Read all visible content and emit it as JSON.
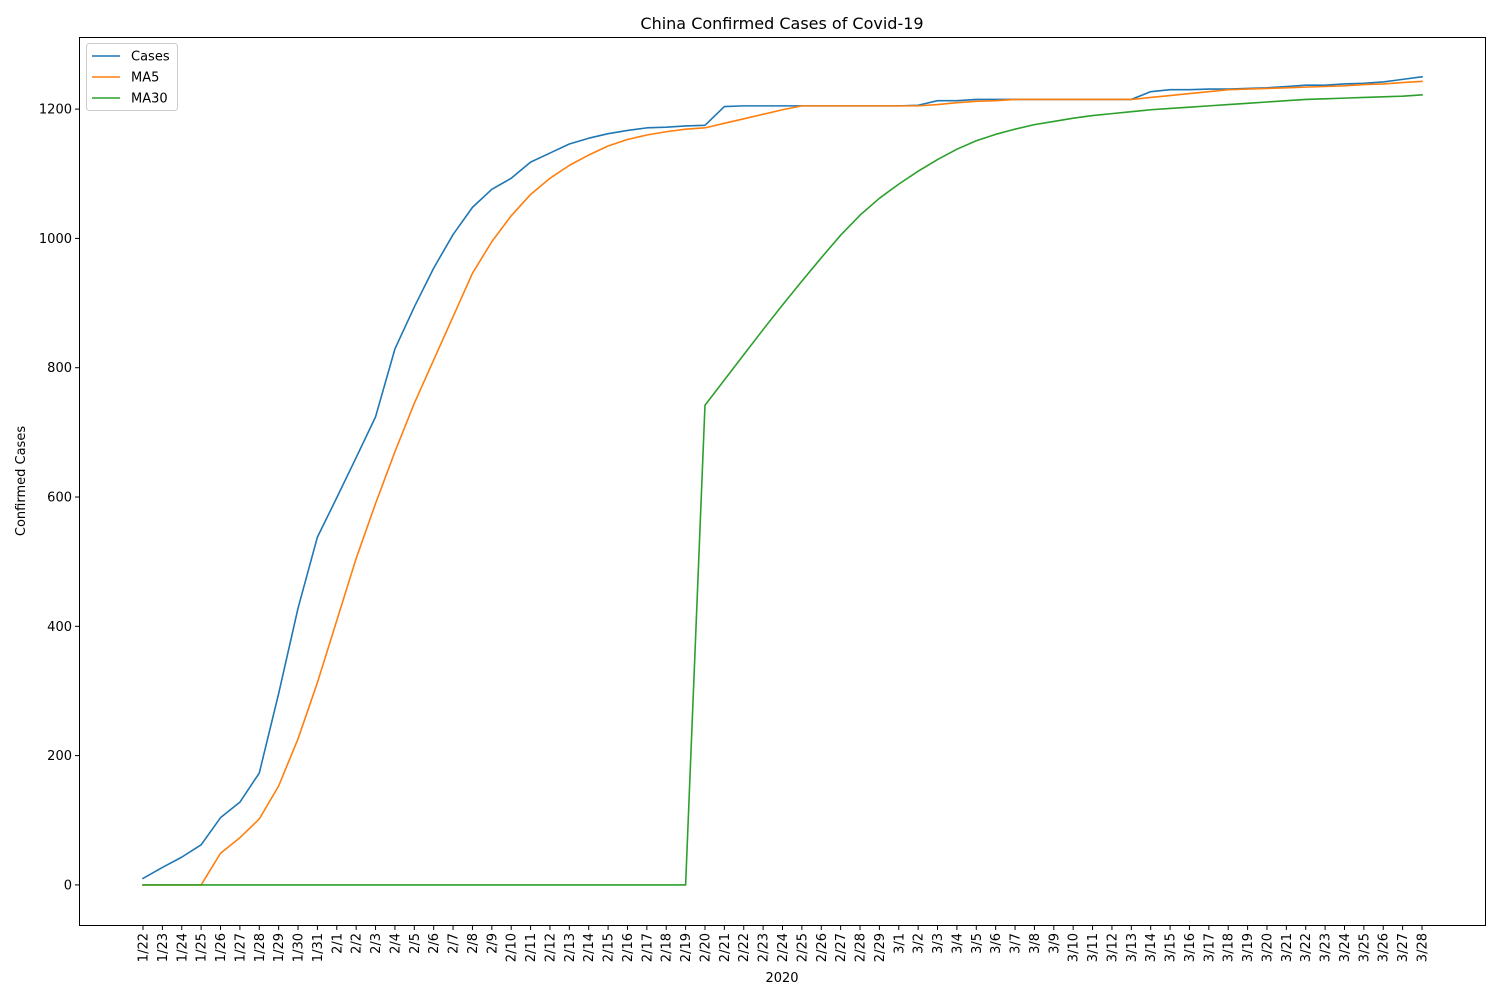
{
  "chart_data": {
    "type": "line",
    "title": "China Confirmed Cases of Covid-19",
    "xlabel": "2020",
    "ylabel": "Confirmed Cases",
    "ylim": [
      -62,
      1310
    ],
    "yticks": [
      0,
      200,
      400,
      600,
      800,
      1000,
      1200
    ],
    "grid": false,
    "legend_position": "upper-left",
    "categories": [
      "1/22",
      "1/23",
      "1/24",
      "1/25",
      "1/26",
      "1/27",
      "1/28",
      "1/29",
      "1/30",
      "1/31",
      "2/1",
      "2/2",
      "2/3",
      "2/4",
      "2/5",
      "2/6",
      "2/7",
      "2/8",
      "2/9",
      "2/10",
      "2/11",
      "2/12",
      "2/13",
      "2/14",
      "2/15",
      "2/16",
      "2/17",
      "2/18",
      "2/19",
      "2/20",
      "2/21",
      "2/22",
      "2/23",
      "2/24",
      "2/25",
      "2/26",
      "2/27",
      "2/28",
      "2/29",
      "3/1",
      "3/2",
      "3/3",
      "3/4",
      "3/5",
      "3/6",
      "3/7",
      "3/8",
      "3/9",
      "3/10",
      "3/11",
      "3/12",
      "3/13",
      "3/14",
      "3/15",
      "3/16",
      "3/17",
      "3/18",
      "3/19",
      "3/20",
      "3/21",
      "3/22",
      "3/23",
      "3/24",
      "3/25",
      "3/26",
      "3/27",
      "3/28"
    ],
    "series": [
      {
        "name": "Cases",
        "color": "#1f77b4",
        "values": [
          10,
          27,
          43,
          62,
          104,
          128,
          173,
          296,
          428,
          538,
          599,
          661,
          724,
          829,
          894,
          954,
          1006,
          1048,
          1076,
          1093,
          1118,
          1132,
          1146,
          1155,
          1162,
          1167,
          1171,
          1172,
          1174,
          1175,
          1204,
          1205,
          1205,
          1205,
          1205,
          1205,
          1205,
          1205,
          1205,
          1205,
          1206,
          1213,
          1213,
          1215,
          1215,
          1215,
          1215,
          1215,
          1215,
          1215,
          1215,
          1215,
          1227,
          1230,
          1230,
          1231,
          1231,
          1232,
          1233,
          1235,
          1237,
          1237,
          1239,
          1240,
          1242,
          1246,
          1250
        ]
      },
      {
        "name": "MA5",
        "color": "#ff7f0e",
        "values": [
          0,
          0,
          0,
          0,
          49,
          73,
          102,
          153,
          226,
          313,
          409,
          505,
          590,
          670,
          745,
          812,
          879,
          946,
          995,
          1035,
          1068,
          1093,
          1113,
          1129,
          1143,
          1153,
          1160,
          1165,
          1169,
          1171,
          1178,
          1185,
          1192,
          1199,
          1205,
          1205,
          1205,
          1205,
          1205,
          1205,
          1205,
          1207,
          1210,
          1212,
          1213,
          1215,
          1215,
          1215,
          1215,
          1215,
          1215,
          1215,
          1218,
          1221,
          1224,
          1227,
          1230,
          1231,
          1232,
          1233,
          1234,
          1235,
          1236,
          1238,
          1239,
          1241,
          1243
        ]
      },
      {
        "name": "MA30",
        "color": "#2ca02c",
        "values": [
          0,
          0,
          0,
          0,
          0,
          0,
          0,
          0,
          0,
          0,
          0,
          0,
          0,
          0,
          0,
          0,
          0,
          0,
          0,
          0,
          0,
          0,
          0,
          0,
          0,
          0,
          0,
          0,
          0,
          742,
          781,
          820,
          859,
          897,
          934,
          970,
          1005,
          1036,
          1062,
          1084,
          1104,
          1122,
          1138,
          1151,
          1161,
          1169,
          1176,
          1181,
          1186,
          1190,
          1193,
          1196,
          1199,
          1201,
          1203,
          1205,
          1207,
          1209,
          1211,
          1213,
          1215,
          1216,
          1217,
          1218,
          1219,
          1220,
          1222
        ]
      }
    ]
  }
}
